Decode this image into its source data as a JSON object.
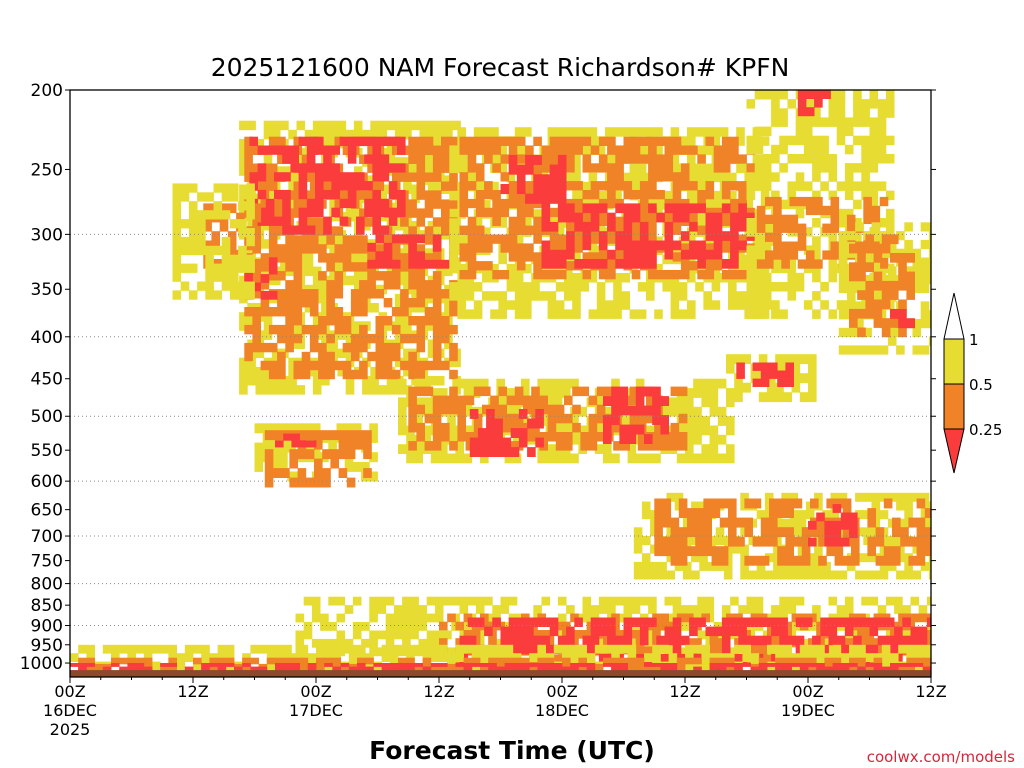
{
  "chart_data": {
    "type": "heatmap",
    "title": "2025121600 NAM Forecast Richardson# KPFN",
    "xlabel": "Forecast Time (UTC)",
    "ylabel": "",
    "credit": "coolwx.com/models",
    "y_scale": "log-pressure",
    "ylim": [
      1040,
      200
    ],
    "xlim_hours": [
      0,
      84
    ],
    "grid": "dotted horizontal lines at 300, 400, 500, 600, 700, 800, 900 hPa",
    "y_ticks": [
      {
        "value": 200,
        "label": "200"
      },
      {
        "value": 250,
        "label": "250"
      },
      {
        "value": 300,
        "label": "300"
      },
      {
        "value": 350,
        "label": "350"
      },
      {
        "value": 400,
        "label": "400"
      },
      {
        "value": 450,
        "label": "450"
      },
      {
        "value": 500,
        "label": "500"
      },
      {
        "value": 550,
        "label": "550"
      },
      {
        "value": 600,
        "label": "600"
      },
      {
        "value": 650,
        "label": "650"
      },
      {
        "value": 700,
        "label": "700"
      },
      {
        "value": 750,
        "label": "750"
      },
      {
        "value": 800,
        "label": "800"
      },
      {
        "value": 850,
        "label": "850"
      },
      {
        "value": 900,
        "label": "900"
      },
      {
        "value": 950,
        "label": "950"
      },
      {
        "value": 1000,
        "label": "1000"
      }
    ],
    "x_ticks": [
      {
        "hour": 0,
        "lines": [
          "00Z",
          "16DEC",
          "2025"
        ]
      },
      {
        "hour": 12,
        "lines": [
          "12Z"
        ]
      },
      {
        "hour": 24,
        "lines": [
          "00Z",
          "17DEC"
        ]
      },
      {
        "hour": 36,
        "lines": [
          "12Z"
        ]
      },
      {
        "hour": 48,
        "lines": [
          "00Z",
          "18DEC"
        ]
      },
      {
        "hour": 60,
        "lines": [
          "12Z"
        ]
      },
      {
        "hour": 72,
        "lines": [
          "00Z",
          "19DEC"
        ]
      },
      {
        "hour": 84,
        "lines": [
          "12Z"
        ]
      }
    ],
    "legend": {
      "placement": "right",
      "bins": [
        {
          "range": "< 0.25",
          "color": "#fa3c3c"
        },
        {
          "range": "0.25 - 0.5",
          "color": "#f08228"
        },
        {
          "range": "0.5 - 1",
          "color": "#e6dc32"
        },
        {
          "range": "> 1",
          "color": "#ffffff"
        }
      ],
      "labels": [
        "1",
        "0.5",
        "0.25"
      ]
    },
    "colors": {
      "red": "#fa3c3c",
      "orange": "#f08228",
      "yellow": "#e6dc32",
      "ground": "#8b4a2b"
    },
    "regions": [
      {
        "bin": "yellow",
        "h0": 16.5,
        "h1": 38,
        "p0": 218,
        "p1": 470
      },
      {
        "bin": "orange",
        "h0": 17,
        "h1": 37,
        "p0": 228,
        "p1": 450
      },
      {
        "bin": "red",
        "h0": 17.5,
        "h1": 32,
        "p0": 228,
        "p1": 300
      },
      {
        "bin": "red",
        "h0": 29,
        "h1": 37,
        "p0": 300,
        "p1": 330
      },
      {
        "bin": "red",
        "h0": 17,
        "h1": 20,
        "p0": 320,
        "p1": 360
      },
      {
        "bin": "yellow",
        "h0": 37,
        "h1": 68,
        "p0": 222,
        "p1": 380
      },
      {
        "bin": "orange",
        "h0": 38,
        "h1": 66,
        "p0": 228,
        "p1": 340
      },
      {
        "bin": "red",
        "h0": 42,
        "h1": 48,
        "p0": 240,
        "p1": 275
      },
      {
        "bin": "red",
        "h0": 46,
        "h1": 66,
        "p0": 275,
        "p1": 330
      },
      {
        "bin": "orange",
        "h0": 13,
        "h1": 18,
        "p0": 275,
        "p1": 330
      },
      {
        "bin": "yellow",
        "h0": 10,
        "h1": 18,
        "p0": 260,
        "p1": 360
      },
      {
        "bin": "yellow",
        "h0": 66,
        "h1": 80,
        "p0": 200,
        "p1": 380
      },
      {
        "bin": "orange",
        "h0": 67,
        "h1": 79,
        "p0": 270,
        "p1": 330
      },
      {
        "bin": "red",
        "h0": 71,
        "h1": 74,
        "p0": 200,
        "p1": 215
      },
      {
        "bin": "yellow",
        "h0": 75,
        "h1": 85,
        "p0": 290,
        "p1": 420
      },
      {
        "bin": "orange",
        "h0": 76,
        "h1": 82,
        "p0": 300,
        "p1": 400
      },
      {
        "bin": "red",
        "h0": 80,
        "h1": 82,
        "p0": 370,
        "p1": 390
      },
      {
        "bin": "yellow",
        "h0": 64,
        "h1": 72,
        "p0": 420,
        "p1": 480
      },
      {
        "bin": "red",
        "h0": 65,
        "h1": 70,
        "p0": 430,
        "p1": 460
      },
      {
        "bin": "yellow",
        "h0": 32,
        "h1": 64,
        "p0": 450,
        "p1": 570
      },
      {
        "bin": "orange",
        "h0": 33,
        "h1": 60,
        "p0": 460,
        "p1": 550
      },
      {
        "bin": "red",
        "h0": 39,
        "h1": 46,
        "p0": 490,
        "p1": 560
      },
      {
        "bin": "red",
        "h0": 52,
        "h1": 58,
        "p0": 460,
        "p1": 540
      },
      {
        "bin": "yellow",
        "h0": 18,
        "h1": 30,
        "p0": 510,
        "p1": 600
      },
      {
        "bin": "orange",
        "h0": 19,
        "h1": 29,
        "p0": 520,
        "p1": 610
      },
      {
        "bin": "red",
        "h0": 20,
        "h1": 24,
        "p0": 525,
        "p1": 545
      },
      {
        "bin": "yellow",
        "h0": 55,
        "h1": 85,
        "p0": 620,
        "p1": 790
      },
      {
        "bin": "orange",
        "h0": 57,
        "h1": 84,
        "p0": 630,
        "p1": 760
      },
      {
        "bin": "red",
        "h0": 72,
        "h1": 76,
        "p0": 640,
        "p1": 720
      },
      {
        "bin": "yellow",
        "h0": 22,
        "h1": 85,
        "p0": 830,
        "p1": 980
      },
      {
        "bin": "orange",
        "h0": 36,
        "h1": 85,
        "p0": 870,
        "p1": 1000
      },
      {
        "bin": "red",
        "h0": 38,
        "h1": 85,
        "p0": 880,
        "p1": 1000
      },
      {
        "bin": "yellow",
        "h0": 0,
        "h1": 85,
        "p0": 950,
        "p1": 1020
      },
      {
        "bin": "orange",
        "h0": 0,
        "h1": 85,
        "p0": 985,
        "p1": 1020
      },
      {
        "bin": "red",
        "h0": 0,
        "h1": 85,
        "p0": 1000,
        "p1": 1020
      }
    ]
  }
}
